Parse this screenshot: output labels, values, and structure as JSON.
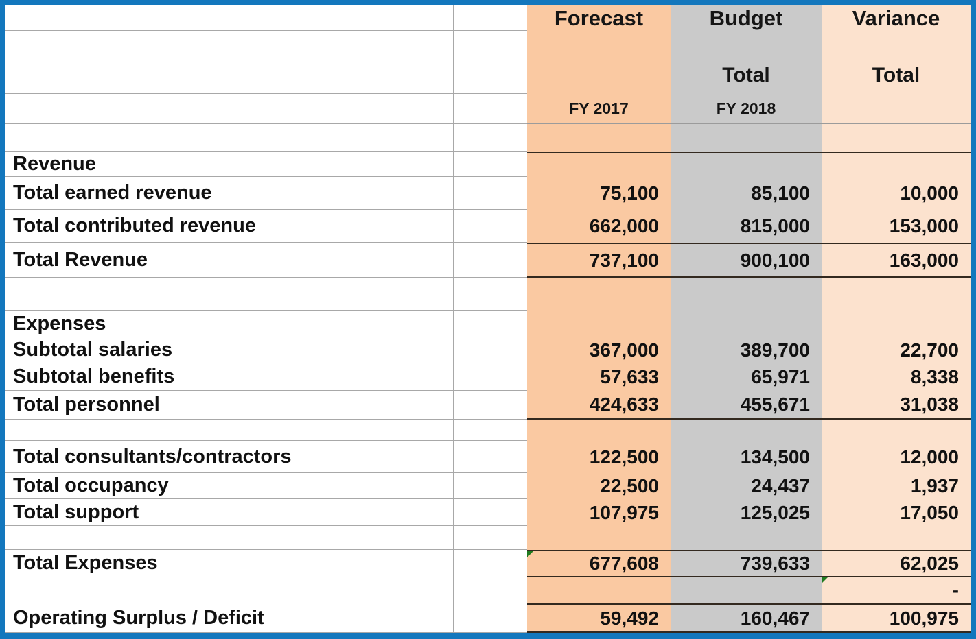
{
  "header": {
    "forecast": {
      "title": "Forecast",
      "subtitle": "",
      "period": "FY 2017"
    },
    "budget": {
      "title": "Budget",
      "subtitle": "Total",
      "period": "FY 2018"
    },
    "variance": {
      "title": "Variance",
      "subtitle": "Total",
      "period": ""
    }
  },
  "rows": [
    {
      "kind": "blank",
      "label": "",
      "forecast": "",
      "budget": "",
      "variance": ""
    },
    {
      "kind": "section",
      "label": "Revenue",
      "forecast": "",
      "budget": "",
      "variance": ""
    },
    {
      "kind": "item",
      "label": "Total earned revenue",
      "forecast": "75,100",
      "budget": "85,100",
      "variance": "10,000"
    },
    {
      "kind": "item",
      "label": "Total contributed revenue",
      "forecast": "662,000",
      "budget": "815,000",
      "variance": "153,000"
    },
    {
      "kind": "total",
      "label": "Total Revenue",
      "forecast": "737,100",
      "budget": "900,100",
      "variance": "163,000"
    },
    {
      "kind": "blank",
      "label": "",
      "forecast": "",
      "budget": "",
      "variance": ""
    },
    {
      "kind": "section",
      "label": "Expenses",
      "forecast": "",
      "budget": "",
      "variance": ""
    },
    {
      "kind": "item",
      "label": "Subtotal salaries",
      "forecast": "367,000",
      "budget": "389,700",
      "variance": "22,700"
    },
    {
      "kind": "item",
      "label": "Subtotal benefits",
      "forecast": "57,633",
      "budget": "65,971",
      "variance": "8,338"
    },
    {
      "kind": "total",
      "label": "Total personnel",
      "forecast": "424,633",
      "budget": "455,671",
      "variance": "31,038"
    },
    {
      "kind": "blank",
      "label": "",
      "forecast": "",
      "budget": "",
      "variance": ""
    },
    {
      "kind": "item",
      "label": "Total consultants/contractors",
      "forecast": "122,500",
      "budget": "134,500",
      "variance": "12,000"
    },
    {
      "kind": "item",
      "label": "Total occupancy",
      "forecast": "22,500",
      "budget": "24,437",
      "variance": "1,937"
    },
    {
      "kind": "item",
      "label": "Total support",
      "forecast": "107,975",
      "budget": "125,025",
      "variance": "17,050"
    },
    {
      "kind": "blank",
      "label": "",
      "forecast": "",
      "budget": "",
      "variance": ""
    },
    {
      "kind": "total",
      "label": "Total Expenses",
      "forecast": "677,608",
      "budget": "739,633",
      "variance": "62,025",
      "markers": [
        "forecast"
      ]
    },
    {
      "kind": "item",
      "label": "",
      "forecast": "",
      "budget": "",
      "variance": "-",
      "markers": [
        "variance"
      ]
    },
    {
      "kind": "total",
      "label": "Operating Surplus / Deficit",
      "forecast": "59,492",
      "budget": "160,467",
      "variance": "100,975"
    }
  ],
  "colors": {
    "frame_blue": "#1377BD",
    "forecast_fill": "#FAC9A2",
    "budget_fill": "#CACACA",
    "variance_fill": "#FCE2CE",
    "grid_light": "#A8A8A8",
    "border_dark": "#33291F",
    "marker_green": "#1F7A1F"
  }
}
